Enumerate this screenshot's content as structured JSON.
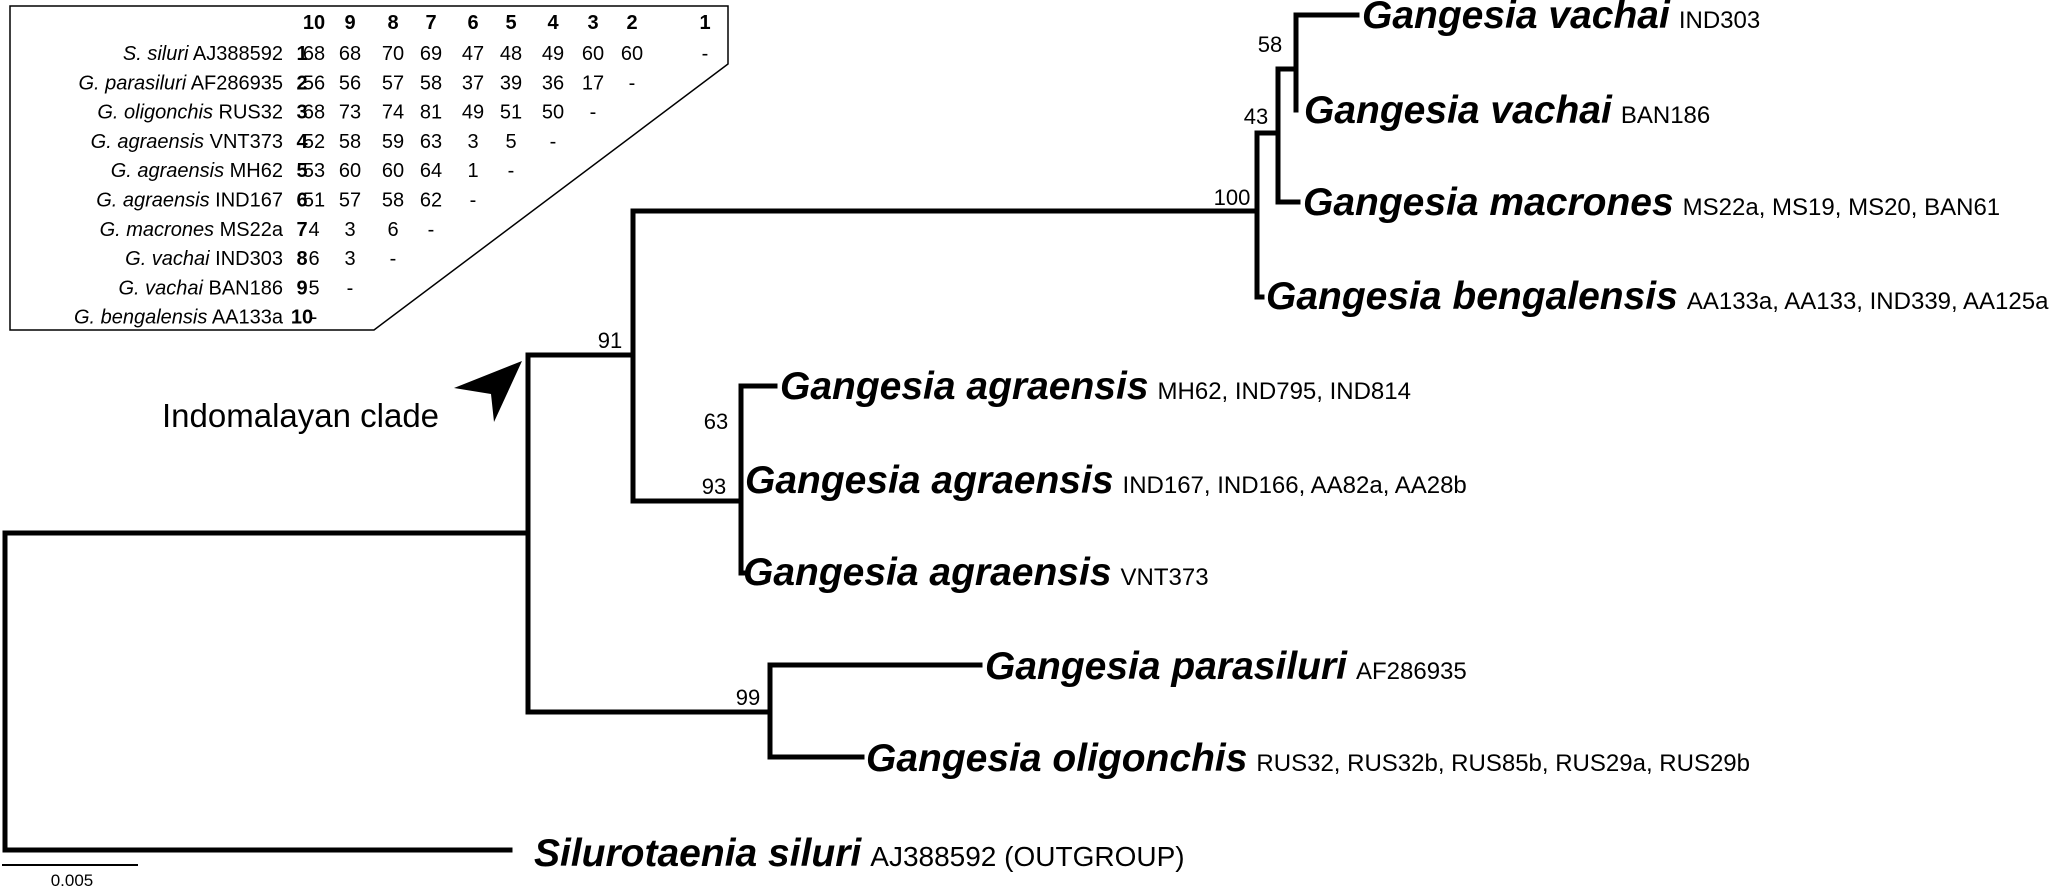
{
  "tree": {
    "tips": [
      {
        "species": "Gangesia vachai",
        "codes": "IND303"
      },
      {
        "species": "Gangesia vachai",
        "codes": "BAN186"
      },
      {
        "species": "Gangesia macrones",
        "codes": "MS22a, MS19, MS20, BAN61"
      },
      {
        "species": "Gangesia bengalensis",
        "codes": "AA133a, AA133, IND339, AA125a"
      },
      {
        "species": "Gangesia agraensis",
        "codes": "MH62, IND795, IND814"
      },
      {
        "species": "Gangesia agraensis",
        "codes": "IND167, IND166, AA82a, AA28b"
      },
      {
        "species": "Gangesia agraensis",
        "codes": "VNT373"
      },
      {
        "species": "Gangesia parasiluri",
        "codes": "AF286935"
      },
      {
        "species": "Gangesia oligonchis",
        "codes": "RUS32, RUS32b, RUS85b, RUS29a, RUS29b"
      },
      {
        "species": "Silurotaenia siluri",
        "codes": "AJ388592 (OUTGROUP)"
      }
    ],
    "supports": [
      "58",
      "43",
      "100",
      "91",
      "63",
      "93",
      "99"
    ],
    "clade_label": "Indomalayan clade",
    "scale_label": "0.005"
  },
  "distance_table": {
    "column_headers": [
      "10",
      "9",
      "8",
      "7",
      "6",
      "5",
      "4",
      "3",
      "2",
      "1"
    ],
    "rows": [
      {
        "species": "S. siluri",
        "code": "AJ388592",
        "num": "1",
        "values": [
          "68",
          "68",
          "70",
          "69",
          "47",
          "48",
          "49",
          "60",
          "60",
          "-"
        ]
      },
      {
        "species": "G. parasiluri",
        "code": "AF286935",
        "num": "2",
        "values": [
          "56",
          "56",
          "57",
          "58",
          "37",
          "39",
          "36",
          "17",
          "-"
        ]
      },
      {
        "species": "G. oligonchis",
        "code": "RUS32",
        "num": "3",
        "values": [
          "68",
          "73",
          "74",
          "81",
          "49",
          "51",
          "50",
          "-"
        ]
      },
      {
        "species": "G. agraensis",
        "code": "VNT373",
        "num": "4",
        "values": [
          "52",
          "58",
          "59",
          "63",
          "3",
          "5",
          "-"
        ]
      },
      {
        "species": "G. agraensis",
        "code": "MH62",
        "num": "5",
        "values": [
          "53",
          "60",
          "60",
          "64",
          "1",
          "-"
        ]
      },
      {
        "species": "G. agraensis",
        "code": "IND167",
        "num": "6",
        "values": [
          "51",
          "57",
          "58",
          "62",
          "-"
        ]
      },
      {
        "species": "G. macrones",
        "code": "MS22a",
        "num": "7",
        "values": [
          "4",
          "3",
          "6",
          "-"
        ]
      },
      {
        "species": "G. vachai",
        "code": "IND303",
        "num": "8",
        "values": [
          "6",
          "3",
          "-"
        ]
      },
      {
        "species": "G. vachai",
        "code": "BAN186",
        "num": "9",
        "values": [
          "5",
          "-"
        ]
      },
      {
        "species": "G. bengalensis",
        "code": "AA133a",
        "num": "10",
        "values": [
          "-"
        ]
      }
    ]
  }
}
